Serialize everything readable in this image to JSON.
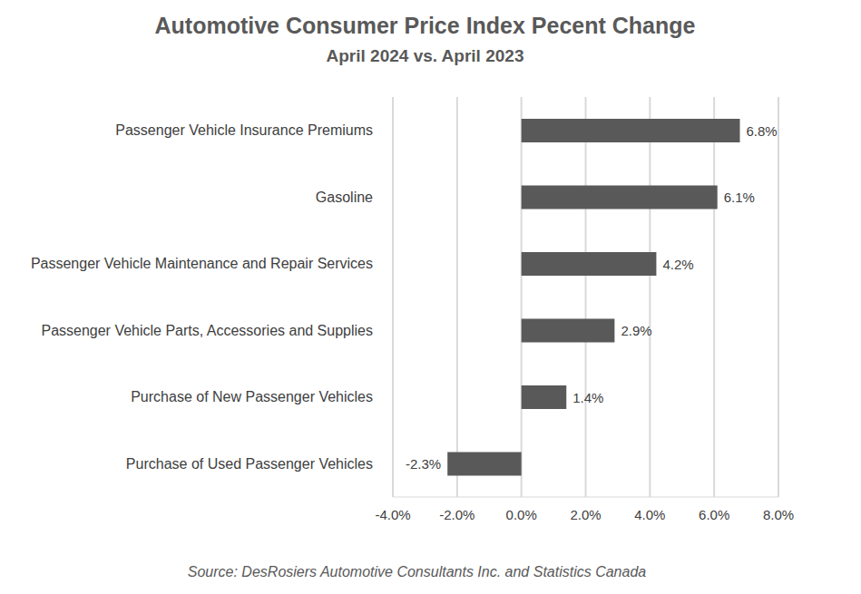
{
  "chart_data": {
    "type": "bar",
    "title": "Automotive Consumer Price Index Pecent Change",
    "subtitle": "April 2024 vs. April 2023",
    "source": "Source: DesRosiers Automotive Consultants Inc. and Statistics Canada",
    "orientation": "horizontal",
    "categories": [
      "Passenger Vehicle Insurance Premiums",
      "Gasoline",
      "Passenger Vehicle Maintenance and Repair Services",
      "Passenger Vehicle Parts, Accessories and Supplies",
      "Purchase of New Passenger Vehicles",
      "Purchase of Used Passenger Vehicles"
    ],
    "values": [
      6.8,
      6.1,
      4.2,
      2.9,
      1.4,
      -2.3
    ],
    "value_labels": [
      "6.8%",
      "6.1%",
      "4.2%",
      "2.9%",
      "1.4%",
      "-2.3%"
    ],
    "data_labels": true,
    "color": "#595959",
    "xlim": [
      -4,
      8
    ],
    "xticks": [
      {
        "value": -4,
        "label": "-4.0%"
      },
      {
        "value": -2,
        "label": "-2.0%"
      },
      {
        "value": 0,
        "label": "0.0%"
      },
      {
        "value": 2,
        "label": "2.0%"
      },
      {
        "value": 4,
        "label": "4.0%"
      },
      {
        "value": 6,
        "label": "6.0%"
      },
      {
        "value": 8,
        "label": "8.0%"
      }
    ],
    "grid": true
  }
}
